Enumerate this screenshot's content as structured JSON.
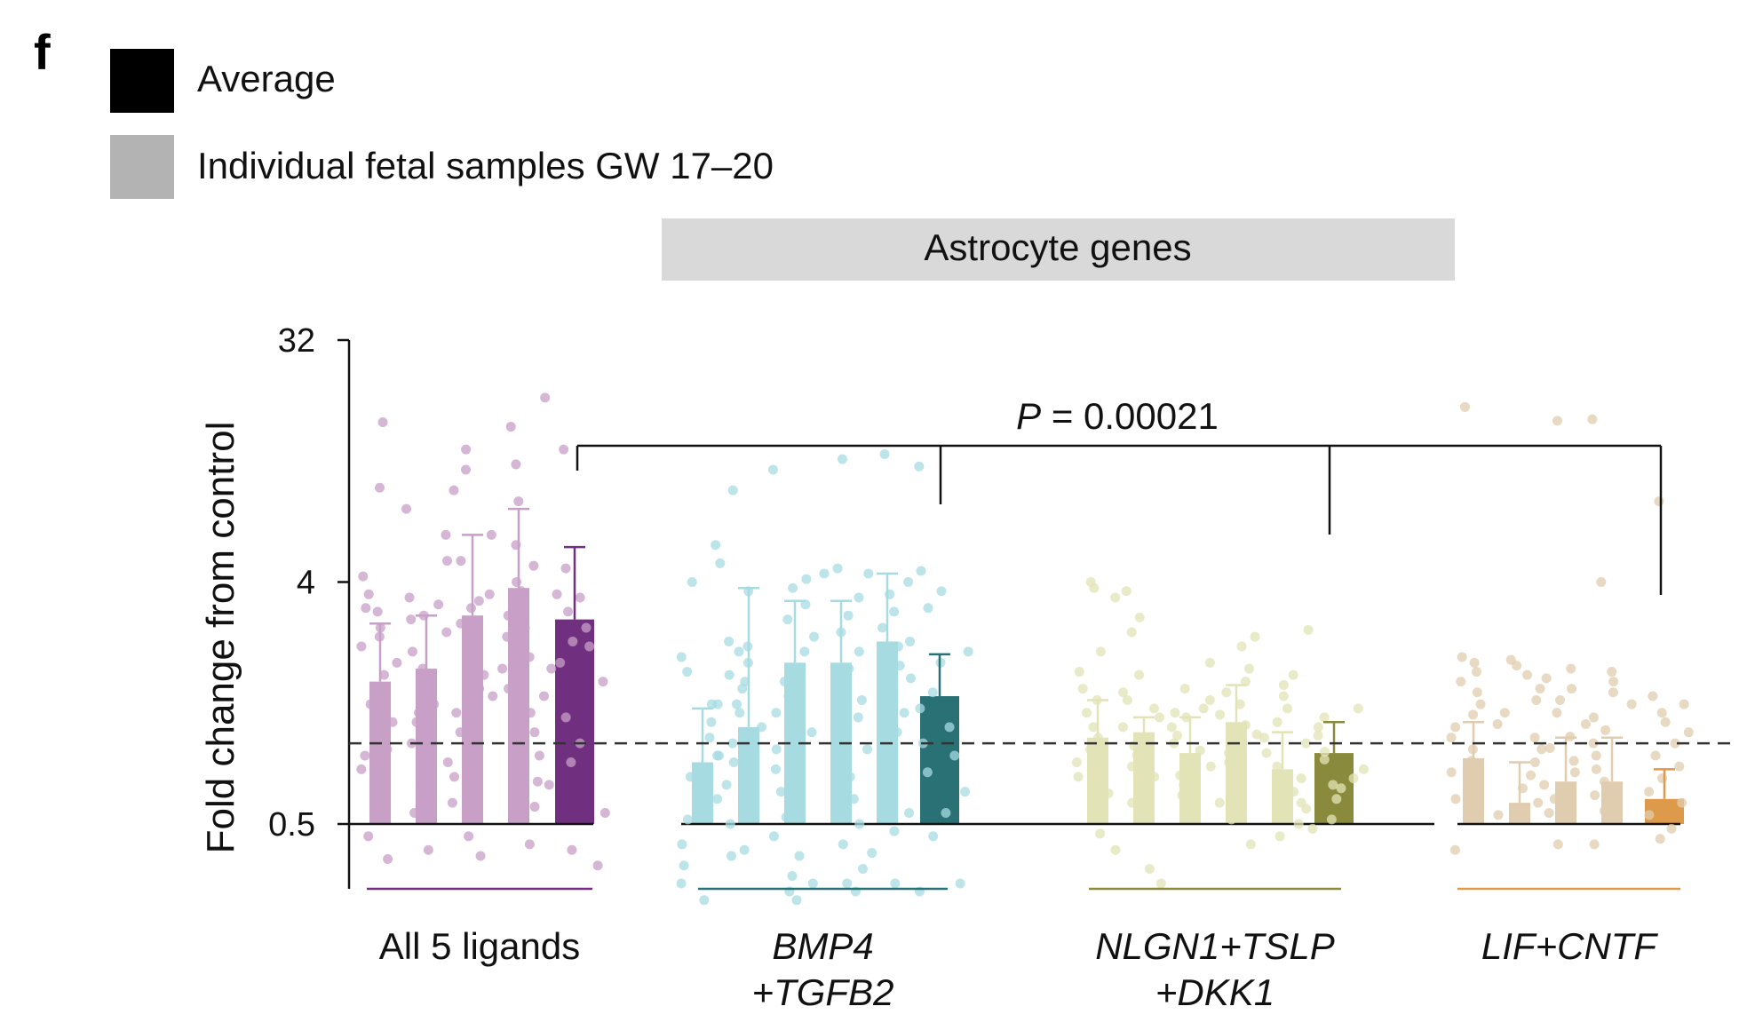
{
  "panel_letter": "f",
  "legend": [
    {
      "label": "Average",
      "color": "#000000"
    },
    {
      "label": "Individual fetal samples GW 17–20",
      "color": "#b3b3b3"
    }
  ],
  "banner": {
    "label": "Astrocyte genes",
    "color": "#d9d9d9"
  },
  "significance": {
    "p_italic": "P",
    "p_rest": " = 0.00021"
  },
  "chart_data": {
    "type": "bar",
    "title": "Astrocyte genes",
    "ylabel": "Fold change from control",
    "yscale": "log2",
    "ylim": [
      0.2,
      32
    ],
    "yticks": [
      {
        "value": 0.5,
        "label": "0.5"
      },
      {
        "value": 4,
        "label": "4"
      },
      {
        "value": 32,
        "label": "32"
      }
    ],
    "reference_line": 1,
    "groups": [
      {
        "name": "All 5 ligands",
        "label_lines": [
          "All 5 ligands"
        ],
        "italic": false,
        "indiv_color": "#c79fc7",
        "avg_color": "#71307f",
        "line_color": "#71307f",
        "bars": [
          {
            "value": 1.7,
            "err": 2.8,
            "type": "individual",
            "points": [
              9.0,
              15.8,
              4.2,
              3.6,
              3.1,
              2.7,
              2.3,
              2.0,
              1.8,
              1.6,
              1.4,
              1.2,
              0.95,
              0.8,
              0.6,
              0.45,
              0.37,
              0.9,
              1.1,
              2.5,
              3.2
            ]
          },
          {
            "value": 1.9,
            "err": 3.0,
            "type": "individual",
            "points": [
              7.5,
              6.0,
              4.8,
              3.5,
              3.0,
              2.6,
              2.2,
              1.9,
              1.6,
              1.4,
              1.2,
              1.0,
              0.85,
              0.7,
              0.55,
              0.4,
              1.3,
              2.9,
              3.3
            ]
          },
          {
            "value": 3.0,
            "err": 6.0,
            "type": "individual",
            "points": [
              12.5,
              10.5,
              8.8,
              6.0,
              4.8,
              3.6,
              3.2,
              2.8,
              2.4,
              2.1,
              1.8,
              1.6,
              1.3,
              1.1,
              0.9,
              0.75,
              0.6,
              0.45,
              0.38,
              3.4,
              1.5
            ]
          },
          {
            "value": 3.8,
            "err": 7.5,
            "type": "individual",
            "points": [
              15.2,
              11.0,
              8.0,
              5.5,
              4.6,
              4.0,
              3.4,
              3.0,
              2.5,
              2.1,
              1.9,
              1.6,
              1.3,
              1.1,
              0.9,
              0.72,
              0.58,
              0.42,
              2.7,
              3.7
            ]
          },
          {
            "value": 2.9,
            "err": 5.4,
            "type": "average",
            "points": [
              19.5,
              12.5,
              4.5,
              3.6,
              3.1,
              2.7,
              2.3,
              2.0,
              1.7,
              1.5,
              1.25,
              1.0,
              0.85,
              0.7,
              0.55,
              0.4,
              0.35,
              3.5,
              2.4,
              1.9
            ]
          }
        ]
      },
      {
        "name": "BMP4 +TGFB2",
        "label_lines": [
          "BMP4",
          "+TGFB2"
        ],
        "italic": true,
        "indiv_color": "#a6dbe1",
        "avg_color": "#2a7175",
        "line_color": "#2a7175",
        "bars": [
          {
            "value": 0.85,
            "err": 1.35,
            "type": "individual",
            "points": [
              5.5,
              4.7,
              4.0,
              2.1,
              1.85,
              1.4,
              1.2,
              1.05,
              0.9,
              0.75,
              0.62,
              0.52,
              0.42,
              0.35,
              0.3,
              0.26,
              0.9,
              1.4
            ]
          },
          {
            "value": 1.15,
            "err": 3.8,
            "type": "individual",
            "points": [
              8.8,
              3.7,
              2.4,
              2.2,
              2.0,
              1.8,
              1.6,
              1.4,
              1.3,
              1.15,
              1.0,
              0.85,
              0.7,
              0.6,
              0.5,
              0.4,
              0.38,
              2.3,
              1.7
            ]
          },
          {
            "value": 2.0,
            "err": 3.4,
            "type": "individual",
            "points": [
              10.5,
              4.1,
              3.8,
              3.3,
              2.9,
              2.5,
              2.2,
              1.9,
              1.7,
              1.5,
              1.3,
              1.1,
              0.95,
              0.8,
              0.66,
              0.53,
              0.45,
              0.38,
              0.32,
              0.28,
              0.26,
              0.3
            ]
          },
          {
            "value": 2.0,
            "err": 3.4,
            "type": "individual",
            "points": [
              11.5,
              4.5,
              4.3,
              3.5,
              3.0,
              2.6,
              2.2,
              1.9,
              1.65,
              1.45,
              1.25,
              1.05,
              0.9,
              0.75,
              0.62,
              0.5,
              0.42,
              0.34,
              0.3,
              0.28
            ]
          },
          {
            "value": 2.4,
            "err": 4.3,
            "type": "individual",
            "points": [
              12.0,
              4.3,
              4.0,
              3.6,
              3.1,
              2.7,
              2.3,
              1.95,
              1.7,
              1.5,
              1.3,
              1.1,
              0.95,
              0.8,
              0.66,
              0.55,
              0.47,
              0.39,
              0.3
            ]
          },
          {
            "value": 1.5,
            "err": 2.15,
            "type": "average",
            "points": [
              10.8,
              4.4,
              3.7,
              3.2,
              2.4,
              2.2,
              2.0,
              1.75,
              1.55,
              1.35,
              1.15,
              1.0,
              0.9,
              0.78,
              0.66,
              0.55,
              0.45,
              0.3,
              0.28
            ]
          }
        ]
      },
      {
        "name": "NLGN1+TSLP +DKK1",
        "label_lines": [
          "NLGN1+TSLP",
          "+DKK1"
        ],
        "italic": true,
        "indiv_color": "#e2e3b6",
        "avg_color": "#8a8a3c",
        "line_color": "#8a8a3c",
        "bars": [
          {
            "value": 1.05,
            "err": 1.45,
            "type": "individual",
            "points": [
              4.0,
              3.8,
              3.5,
              2.2,
              1.85,
              1.6,
              1.45,
              1.3,
              1.15,
              1.05,
              0.95,
              0.85,
              0.75,
              0.65,
              0.55,
              0.46,
              0.4
            ]
          },
          {
            "value": 1.1,
            "err": 1.25,
            "type": "individual",
            "points": [
              3.7,
              2.95,
              2.6,
              1.8,
              1.55,
              1.45,
              1.35,
              1.25,
              1.15,
              1.05,
              0.98,
              0.9,
              0.82,
              0.75,
              0.68,
              0.6,
              0.34,
              0.3
            ]
          },
          {
            "value": 0.92,
            "err": 1.25,
            "type": "individual",
            "points": [
              2.0,
              1.6,
              1.45,
              1.35,
              1.25,
              1.15,
              1.07,
              1.0,
              0.94,
              0.88,
              0.82,
              0.76,
              0.7,
              0.64,
              1.3
            ]
          },
          {
            "value": 1.2,
            "err": 1.65,
            "type": "individual",
            "points": [
              2.5,
              2.3,
              1.9,
              1.7,
              1.55,
              1.4,
              1.28,
              1.17,
              1.08,
              1.0,
              0.92,
              0.85,
              0.77,
              0.7,
              0.6,
              0.52,
              0.42
            ]
          },
          {
            "value": 0.8,
            "err": 1.1,
            "type": "individual",
            "points": [
              1.8,
              1.65,
              1.5,
              1.35,
              1.2,
              1.05,
              0.92,
              0.82,
              0.74,
              0.66,
              0.6,
              0.55,
              0.5,
              0.45
            ]
          },
          {
            "value": 0.92,
            "err": 1.2,
            "type": "average",
            "points": [
              2.65,
              1.35,
              1.25,
              1.15,
              1.07,
              1.0,
              0.93,
              0.87,
              0.8,
              0.74,
              0.68,
              0.62,
              0.57,
              0.52,
              0.48,
              0.7
            ]
          }
        ]
      },
      {
        "name": "LIF+CNTF",
        "label_lines": [
          "LIF+CNTF"
        ],
        "italic": true,
        "indiv_color": "#e0ccae",
        "avg_color": "#dd9a4b",
        "line_color": "#dd9a4b",
        "bars": [
          {
            "value": 0.88,
            "err": 1.2,
            "type": "individual",
            "points": [
              18.0,
              2.1,
              2.0,
              1.85,
              1.7,
              1.55,
              1.4,
              1.28,
              1.15,
              1.05,
              0.95,
              0.86,
              0.78,
              0.7,
              0.62,
              0.4
            ]
          },
          {
            "value": 0.6,
            "err": 0.85,
            "type": "individual",
            "points": [
              2.05,
              1.95,
              1.8,
              1.6,
              1.45,
              1.3,
              1.18,
              1.05,
              0.95,
              0.85,
              0.76,
              0.68,
              0.6,
              0.54
            ]
          },
          {
            "value": 0.72,
            "err": 1.05,
            "type": "individual",
            "points": [
              16.0,
              1.9,
              1.75,
              1.6,
              1.45,
              1.3,
              1.18,
              1.06,
              0.96,
              0.86,
              0.78,
              0.7,
              0.62,
              0.55,
              0.42
            ]
          },
          {
            "value": 0.72,
            "err": 1.05,
            "type": "individual",
            "points": [
              16.2,
              4.0,
              1.85,
              1.7,
              1.55,
              1.4,
              1.25,
              1.12,
              1.0,
              0.9,
              0.8,
              0.72,
              0.64,
              0.56,
              0.42
            ]
          },
          {
            "value": 0.62,
            "err": 0.8,
            "type": "average",
            "points": [
              8.0,
              1.5,
              1.4,
              1.3,
              1.2,
              1.1,
              1.0,
              0.9,
              0.82,
              0.74,
              0.66,
              0.6,
              0.54,
              0.48,
              0.44
            ]
          }
        ]
      }
    ]
  }
}
